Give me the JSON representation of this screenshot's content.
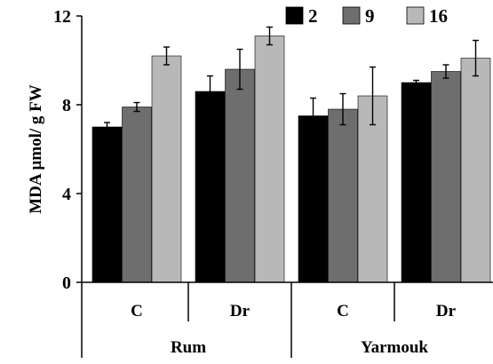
{
  "chart_data": {
    "type": "bar",
    "ylabel": "MDA µmol/ g FW",
    "ylim": [
      0,
      12
    ],
    "yticks": [
      "0",
      "4",
      "8",
      "12"
    ],
    "grid": false,
    "legend_position": "top-right",
    "categories": [
      "C",
      "Dr",
      "C",
      "Dr"
    ],
    "groups": [
      {
        "label": "Rum",
        "span": [
          0,
          1
        ]
      },
      {
        "label": "Yarmouk",
        "span": [
          2,
          3
        ]
      }
    ],
    "series": [
      {
        "name": "2",
        "color": "#000000",
        "values": [
          7.0,
          8.6,
          7.5,
          9.0
        ],
        "errors": [
          0.2,
          0.7,
          0.8,
          0.1
        ]
      },
      {
        "name": "9",
        "color": "#6e6e6e",
        "values": [
          7.9,
          9.6,
          7.8,
          9.5
        ],
        "errors": [
          0.2,
          0.9,
          0.7,
          0.3
        ]
      },
      {
        "name": "16",
        "color": "#b8b8b8",
        "values": [
          10.2,
          11.1,
          8.4,
          10.1
        ],
        "errors": [
          0.4,
          0.4,
          1.3,
          0.8
        ]
      }
    ]
  }
}
